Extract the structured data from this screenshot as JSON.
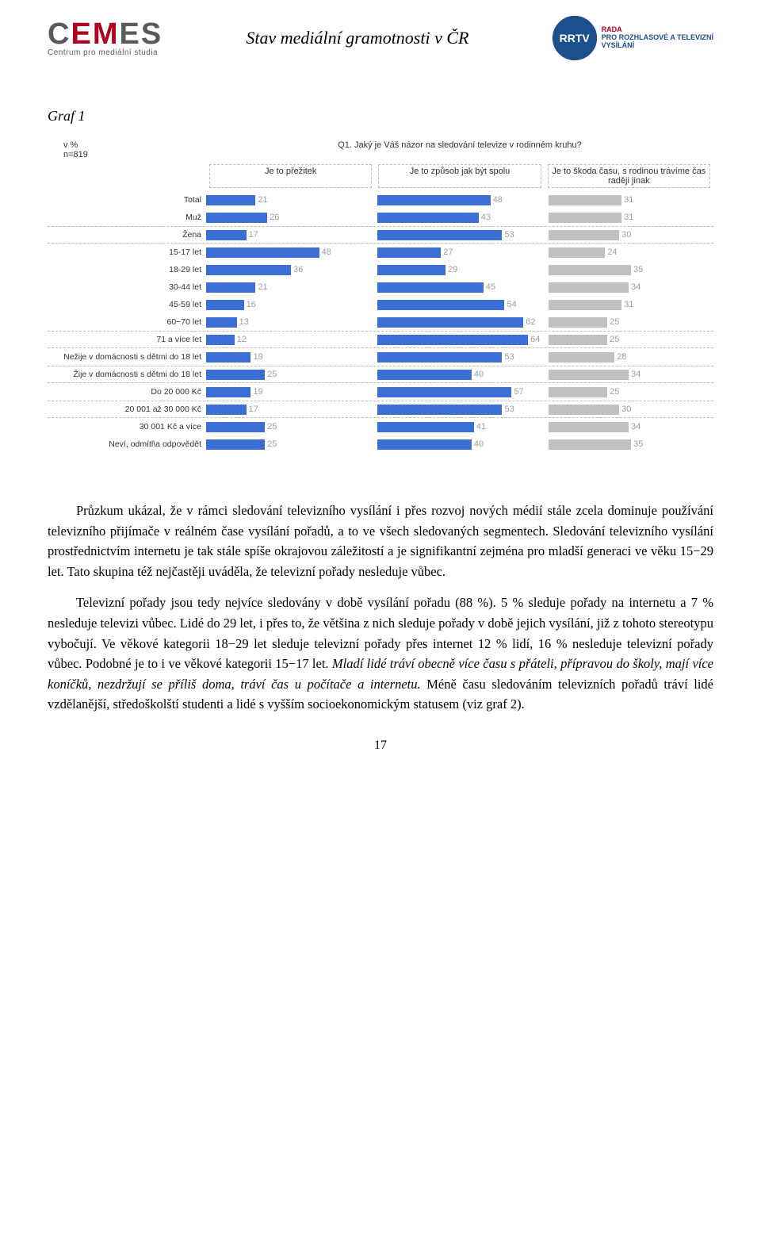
{
  "header": {
    "logo_left": {
      "main": "CEMES",
      "sub": "Centrum pro mediální studia"
    },
    "title": "Stav mediální gramotnosti v ČR",
    "logo_right": {
      "badge": "RRTV",
      "line1": "RADA",
      "line2": "PRO ROZHLASOVÉ A TELEVIZNÍ",
      "line3": "VYSÍLÁNÍ"
    }
  },
  "figure": {
    "label": "Graf 1",
    "corner_note_l1": "v %",
    "corner_note_l2": "n=819",
    "question": "Q1. Jaký je Váš názor na sledování televize v rodinném kruhu?",
    "legends": [
      "Je to přežitek",
      "Je to způsob jak být spolu",
      "Je to škoda času, s rodinou trávíme čas raději jinak"
    ],
    "colors": [
      "#3b6fd6",
      "#3b6fd6",
      "#c0c0c0"
    ],
    "value_color": "#9aa0a6",
    "max": 70,
    "dividers": [
      2,
      8,
      10,
      12
    ],
    "rows": [
      {
        "label": "Total",
        "v": [
          21,
          48,
          31
        ]
      },
      {
        "label": "Muž",
        "v": [
          26,
          43,
          31
        ]
      },
      {
        "label": "Žena",
        "v": [
          17,
          53,
          30
        ]
      },
      {
        "label": "15-17 let",
        "v": [
          48,
          27,
          24
        ]
      },
      {
        "label": "18-29 let",
        "v": [
          36,
          29,
          35
        ]
      },
      {
        "label": "30-44 let",
        "v": [
          21,
          45,
          34
        ]
      },
      {
        "label": "45-59 let",
        "v": [
          16,
          54,
          31
        ]
      },
      {
        "label": "60−70 let",
        "v": [
          13,
          62,
          25
        ]
      },
      {
        "label": "71 a více let",
        "v": [
          12,
          64,
          25
        ]
      },
      {
        "label": "Nežije v domácnosti s dětmi do 18 let",
        "v": [
          19,
          53,
          28
        ]
      },
      {
        "label": "Žije v domácnosti s dětmi do 18 let",
        "v": [
          25,
          40,
          34
        ]
      },
      {
        "label": "Do 20 000 Kč",
        "v": [
          19,
          57,
          25
        ]
      },
      {
        "label": "20 001 až 30 000 Kč",
        "v": [
          17,
          53,
          30
        ]
      },
      {
        "label": "30 001 Kč a více",
        "v": [
          25,
          41,
          34
        ]
      },
      {
        "label": "Neví, odmítl\\a odpovědět",
        "v": [
          25,
          40,
          35
        ]
      }
    ]
  },
  "body": {
    "p1a": "Průzkum ukázal, že v rámci sledování televizního vysílání i přes rozvoj nových médií stále zcela dominuje používání televizního přijímače v reálném čase vysílání pořadů, a to ve všech sledovaných segmentech. Sledování televizního vysílání prostřednictvím internetu je tak stále spíše okrajovou záležitostí a je signifikantní zejména pro mladší generaci ve věku 15−29 let.  Tato skupina též nejčastěji uváděla, že televizní pořady nesleduje vůbec.",
    "p2a": "Televizní pořady jsou tedy nejvíce sledovány v době vysílání pořadu (88 %). 5 % sleduje pořady na internetu a 7 % nesleduje televizi vůbec. Lidé do 29 let, i přes to, že většina z nich sleduje pořady v době jejich vysílání, již z tohoto stereotypu vybočují. Ve věkové kategorii 18−29 let sleduje televizní pořady přes internet 12 % lidí, 16 % nesleduje televizní pořady vůbec. Podobné je to i ve věkové kategorii 15−17 let. ",
    "p2b": "Mladí lidé tráví obecně více času s přáteli, přípravou do školy, mají více koníčků, nezdržují se příliš doma, tráví čas u počítače a internetu.",
    "p2c": "  Méně času sledováním televizních pořadů tráví lidé vzdělanější, středoškolští studenti a lidé s vyšším socioekonomickým statusem (viz graf 2)."
  },
  "page_number": "17"
}
